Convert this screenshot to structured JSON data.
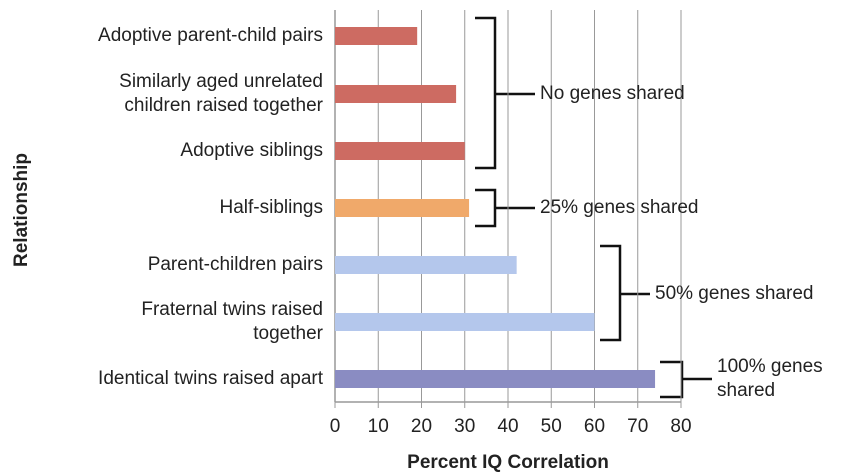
{
  "chart_data": {
    "type": "bar",
    "orientation": "horizontal",
    "xlabel": "Percent IQ Correlation",
    "ylabel": "Relationship",
    "categories": [
      "Adoptive parent-child pairs",
      "Similarly aged unrelated\nchildren raised together",
      "Adoptive siblings",
      "Half-siblings",
      "Parent-children pairs",
      "Fraternal twins raised\ntogether",
      "Identical twins raised apart"
    ],
    "values": [
      19,
      28,
      30,
      31,
      42,
      60,
      74
    ],
    "colors": [
      "#cd6b62",
      "#cd6b62",
      "#cd6b62",
      "#f0a96a",
      "#b4c7ec",
      "#b4c7ec",
      "#8a8cc2"
    ],
    "xlim": [
      0,
      80
    ],
    "xticks": [
      0,
      10,
      20,
      30,
      40,
      50,
      60,
      70,
      80
    ],
    "grid": true,
    "annotations": [
      "No genes shared",
      "25% genes shared",
      "50% genes shared",
      "100% genes\nshared"
    ]
  }
}
